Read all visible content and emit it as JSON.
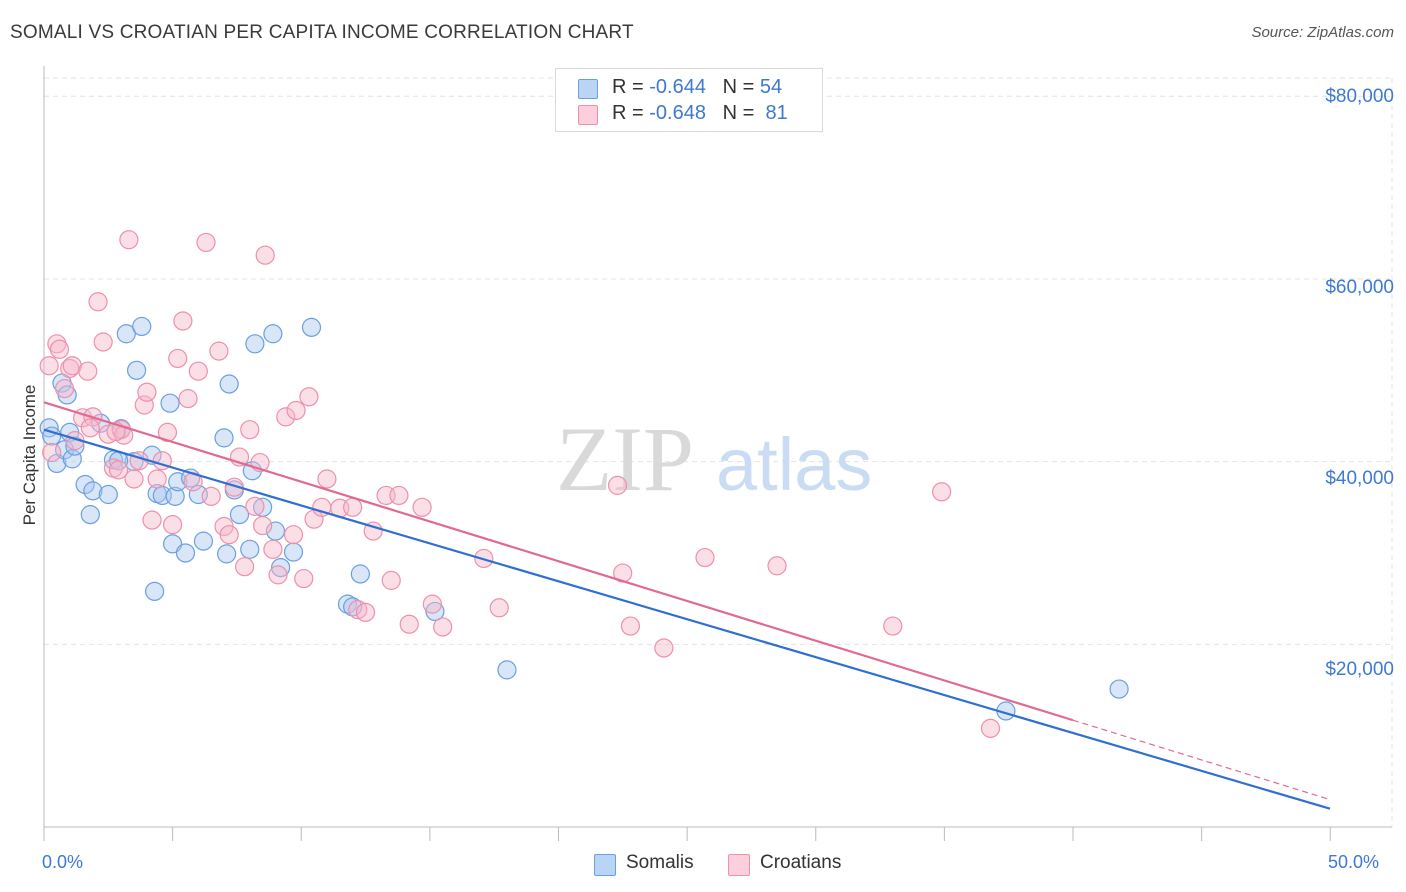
{
  "title": "SOMALI VS CROATIAN PER CAPITA INCOME CORRELATION CHART",
  "source": "Source: ZipAtlas.com",
  "watermark": {
    "zip": "ZIP",
    "atlas": "atlas"
  },
  "legend": {
    "rows": [
      {
        "r_label": "R = ",
        "r_value": "-0.644",
        "n_label": "N = ",
        "n_value": "54",
        "color": "#a8c8f0"
      },
      {
        "r_label": "R = ",
        "r_value": "-0.648",
        "n_label": "N = ",
        "n_value": " 81",
        "color": "#f7b7c9"
      }
    ]
  },
  "bottom_legend": [
    {
      "label": "Somalis",
      "color": "#a8c8f0"
    },
    {
      "label": "Croatians",
      "color": "#f7b7c9"
    }
  ],
  "chart_data": {
    "type": "scatter",
    "xlabel": "",
    "ylabel": "Per Capita Income",
    "xlim": [
      0,
      50
    ],
    "ylim": [
      0,
      82000
    ],
    "x_tick_labels": [
      "0.0%",
      "50.0%"
    ],
    "y_ticks": [
      20000,
      40000,
      60000,
      80000
    ],
    "y_tick_labels": [
      "$20,000",
      "$40,000",
      "$60,000",
      "$80,000"
    ],
    "grid": true,
    "series": [
      {
        "name": "Somalis",
        "color": "#6a9fe0",
        "fill": "#a8c8f0",
        "trend": {
          "x0": 0,
          "y0": 43500,
          "x1": 50,
          "y1": 2000,
          "color": "#2f6fd1",
          "dashed_from": null
        },
        "points": [
          [
            0.2,
            43700
          ],
          [
            0.3,
            42800
          ],
          [
            0.5,
            39800
          ],
          [
            0.7,
            48600
          ],
          [
            0.8,
            41300
          ],
          [
            0.9,
            47300
          ],
          [
            1.0,
            43200
          ],
          [
            1.1,
            40300
          ],
          [
            1.2,
            41700
          ],
          [
            1.6,
            37500
          ],
          [
            1.8,
            34200
          ],
          [
            1.9,
            36800
          ],
          [
            2.2,
            44200
          ],
          [
            2.5,
            36400
          ],
          [
            2.7,
            40200
          ],
          [
            3.0,
            43600
          ],
          [
            3.2,
            54000
          ],
          [
            3.5,
            40000
          ],
          [
            3.6,
            50000
          ],
          [
            3.8,
            54800
          ],
          [
            4.2,
            40700
          ],
          [
            4.3,
            25800
          ],
          [
            4.4,
            36500
          ],
          [
            4.6,
            36300
          ],
          [
            4.9,
            46400
          ],
          [
            5.0,
            31000
          ],
          [
            5.1,
            36200
          ],
          [
            5.2,
            37800
          ],
          [
            5.5,
            30000
          ],
          [
            5.7,
            38200
          ],
          [
            6.0,
            36400
          ],
          [
            6.2,
            31300
          ],
          [
            7.0,
            42600
          ],
          [
            7.1,
            29900
          ],
          [
            7.2,
            48500
          ],
          [
            7.4,
            36900
          ],
          [
            7.6,
            34200
          ],
          [
            8.0,
            30400
          ],
          [
            8.1,
            39000
          ],
          [
            8.2,
            52900
          ],
          [
            8.5,
            35000
          ],
          [
            8.9,
            54000
          ],
          [
            9.0,
            32400
          ],
          [
            9.2,
            28400
          ],
          [
            9.7,
            30100
          ],
          [
            10.4,
            54700
          ],
          [
            11.8,
            24400
          ],
          [
            12.0,
            24100
          ],
          [
            12.3,
            27700
          ],
          [
            15.2,
            23600
          ],
          [
            18.0,
            17200
          ],
          [
            37.4,
            12700
          ],
          [
            41.8,
            15100
          ],
          [
            2.9,
            40100
          ]
        ]
      },
      {
        "name": "Croatians",
        "color": "#ee8fab",
        "fill": "#f7b7c9",
        "trend": {
          "x0": 0,
          "y0": 46500,
          "x1": 50,
          "y1": 3000,
          "color": "#e06a92",
          "dashed_from": 40
        },
        "points": [
          [
            0.2,
            50500
          ],
          [
            0.3,
            41000
          ],
          [
            0.5,
            52900
          ],
          [
            0.6,
            52300
          ],
          [
            0.8,
            48000
          ],
          [
            1.0,
            50200
          ],
          [
            1.1,
            50500
          ],
          [
            1.2,
            42300
          ],
          [
            1.5,
            44800
          ],
          [
            1.7,
            49900
          ],
          [
            1.9,
            44900
          ],
          [
            2.1,
            57500
          ],
          [
            2.3,
            53100
          ],
          [
            2.5,
            43000
          ],
          [
            2.7,
            39300
          ],
          [
            2.9,
            39100
          ],
          [
            3.0,
            43500
          ],
          [
            3.1,
            42900
          ],
          [
            3.3,
            64300
          ],
          [
            3.5,
            38100
          ],
          [
            3.7,
            40100
          ],
          [
            3.9,
            46200
          ],
          [
            4.0,
            47600
          ],
          [
            4.2,
            33600
          ],
          [
            4.4,
            38100
          ],
          [
            4.6,
            40100
          ],
          [
            4.8,
            43200
          ],
          [
            5.0,
            33100
          ],
          [
            5.2,
            51300
          ],
          [
            5.4,
            55400
          ],
          [
            5.6,
            46900
          ],
          [
            5.8,
            37800
          ],
          [
            6.0,
            49900
          ],
          [
            6.3,
            64000
          ],
          [
            6.5,
            36200
          ],
          [
            6.8,
            52100
          ],
          [
            7.0,
            32900
          ],
          [
            7.2,
            32000
          ],
          [
            7.4,
            37200
          ],
          [
            7.6,
            40500
          ],
          [
            7.8,
            28500
          ],
          [
            8.0,
            43500
          ],
          [
            8.2,
            35100
          ],
          [
            8.4,
            39900
          ],
          [
            8.5,
            33000
          ],
          [
            8.6,
            62600
          ],
          [
            8.9,
            30400
          ],
          [
            9.1,
            27600
          ],
          [
            9.4,
            44900
          ],
          [
            9.7,
            32000
          ],
          [
            9.8,
            45600
          ],
          [
            10.1,
            27200
          ],
          [
            10.3,
            47100
          ],
          [
            10.5,
            33700
          ],
          [
            10.8,
            35000
          ],
          [
            11.0,
            38100
          ],
          [
            11.5,
            34900
          ],
          [
            12.0,
            35000
          ],
          [
            12.2,
            23800
          ],
          [
            12.5,
            23500
          ],
          [
            12.8,
            32400
          ],
          [
            13.3,
            36300
          ],
          [
            13.5,
            27000
          ],
          [
            13.8,
            36300
          ],
          [
            14.2,
            22200
          ],
          [
            14.7,
            35000
          ],
          [
            15.1,
            24400
          ],
          [
            15.5,
            21900
          ],
          [
            17.1,
            29400
          ],
          [
            17.7,
            24000
          ],
          [
            22.3,
            37400
          ],
          [
            22.5,
            27800
          ],
          [
            22.8,
            22000
          ],
          [
            24.1,
            19600
          ],
          [
            25.7,
            29500
          ],
          [
            28.5,
            28600
          ],
          [
            33.0,
            22000
          ],
          [
            34.9,
            36700
          ],
          [
            36.8,
            10800
          ],
          [
            1.8,
            43700
          ],
          [
            2.8,
            43300
          ]
        ]
      }
    ]
  }
}
